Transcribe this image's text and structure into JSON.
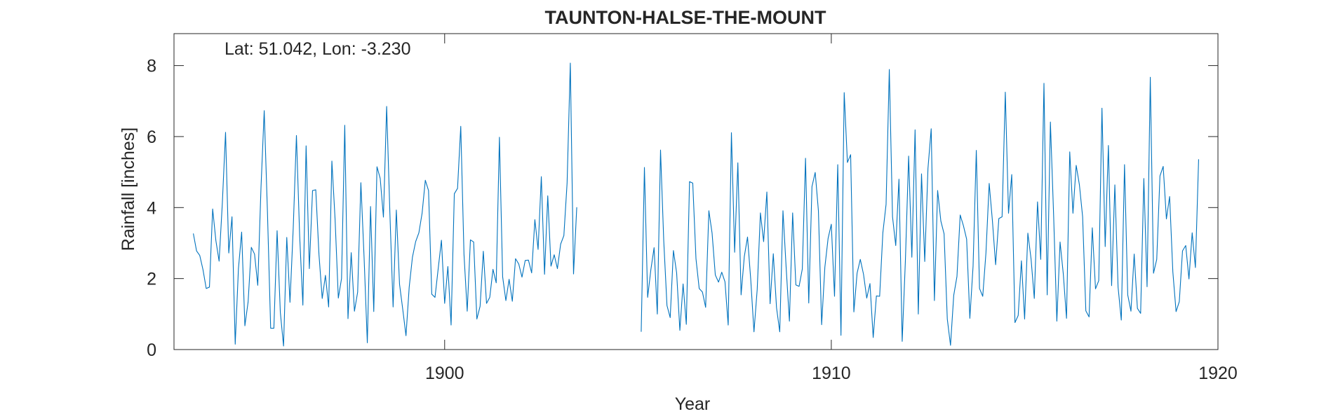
{
  "chart_data": {
    "type": "line",
    "title": "TAUNTON-HALSE-THE-MOUNT",
    "annotation": "Lat: 51.042, Lon: -3.230",
    "xlabel": "Year",
    "ylabel": "Rainfall [inches]",
    "xlim": [
      1893.0,
      1920.0
    ],
    "ylim": [
      0,
      8.9
    ],
    "xticks": [
      1900,
      1910,
      1920
    ],
    "yticks": [
      0,
      2,
      4,
      6,
      8
    ],
    "grid": false,
    "box": true,
    "line_color": "#0072BD",
    "series": [
      {
        "start_year": 1893.5,
        "step_months": 1,
        "segments": [
          {
            "offset_months": 0,
            "values": [
              3.27,
              2.78,
              2.65,
              2.25,
              1.72,
              1.76,
              3.96,
              3.07,
              2.49,
              4.12,
              6.12,
              2.72,
              3.74,
              0.15,
              2.28,
              3.31,
              0.67,
              1.34,
              2.88,
              2.69,
              1.81,
              4.56,
              6.73,
              3.89,
              0.6,
              0.6,
              3.35,
              1.05,
              0.1,
              3.16,
              1.33,
              3.41,
              6.03,
              3.21,
              1.25,
              5.74,
              2.28,
              4.48,
              4.5,
              2.67,
              1.44,
              2.09,
              1.2,
              5.31,
              3.66,
              1.45,
              2.0,
              6.32,
              0.87,
              2.73,
              1.08,
              1.62,
              4.7,
              2.59,
              0.19,
              4.03,
              1.07,
              5.15,
              4.82,
              3.73,
              6.85,
              3.86,
              1.2,
              3.93,
              1.84,
              1.13,
              0.39,
              1.76,
              2.6,
              3.04,
              3.29,
              3.84,
              4.77,
              4.48,
              1.56,
              1.47,
              2.28,
              3.08,
              1.3,
              2.34,
              0.69,
              4.39,
              4.54,
              6.29,
              2.69,
              1.08,
              3.09,
              3.03,
              0.86,
              1.22,
              2.77,
              1.3,
              1.47,
              2.26,
              1.88,
              5.98,
              2.05,
              1.38,
              1.98,
              1.36,
              2.56,
              2.41,
              2.04,
              2.51,
              2.52,
              2.16,
              3.66,
              2.82,
              4.87,
              2.12,
              4.33,
              2.35,
              2.67,
              2.28,
              2.97,
              3.21,
              4.69,
              8.07,
              2.13,
              4.01
            ]
          },
          {
            "offset_months": 139,
            "values": [
              0.5,
              5.13,
              1.47,
              2.25,
              2.87,
              1.0,
              5.62,
              3.06,
              1.24,
              0.9,
              2.79,
              2.16,
              0.54,
              1.85,
              0.71,
              4.73,
              4.69,
              2.56,
              1.72,
              1.62,
              1.19,
              3.91,
              3.28,
              2.1,
              1.9,
              2.18,
              1.91,
              0.69,
              6.11,
              2.74,
              5.26,
              1.54,
              2.62,
              3.17,
              1.97,
              0.5,
              1.69,
              3.85,
              3.04,
              4.44,
              1.29,
              2.7,
              1.18,
              0.5,
              3.91,
              2.29,
              0.8,
              3.85,
              1.82,
              1.78,
              2.27,
              5.39,
              1.31,
              4.59,
              4.99,
              3.91,
              0.7,
              2.32,
              3.13,
              3.53,
              1.5,
              5.21,
              0.4,
              7.24,
              5.27,
              5.49,
              1.06,
              2.15,
              2.54,
              2.12,
              1.45,
              1.86,
              0.34,
              1.51,
              1.5,
              3.29,
              4.09,
              7.89,
              3.74,
              2.93,
              4.8,
              0.23,
              2.52,
              5.45,
              2.6,
              6.19,
              1.0,
              4.95,
              2.48,
              5.1,
              6.22,
              1.38,
              4.48,
              3.62,
              3.26,
              0.86,
              0.12,
              1.53,
              2.06,
              3.79,
              3.49,
              3.11,
              0.88,
              2.35,
              5.61,
              1.72,
              1.5,
              2.73,
              4.68,
              3.63,
              2.39,
              3.69,
              3.74,
              7.25,
              3.84,
              4.93,
              0.76,
              0.96,
              2.5,
              0.86,
              3.28,
              2.55,
              1.44,
              4.16,
              2.54,
              7.5,
              1.54,
              6.41,
              3.78,
              0.8,
              3.03,
              2.13,
              0.88,
              5.57,
              3.84,
              5.19,
              4.64,
              3.74,
              1.09,
              0.92,
              3.43,
              1.71,
              1.94,
              6.8,
              2.9,
              5.75,
              1.8,
              4.64,
              1.76,
              0.83,
              5.21,
              1.54,
              1.08,
              2.69,
              1.16,
              1.02,
              4.82,
              1.77,
              7.67,
              2.15,
              2.54,
              4.89,
              5.16,
              3.68,
              4.31,
              2.19,
              1.07,
              1.35,
              2.78,
              2.93,
              1.99,
              3.29,
              2.31,
              5.36
            ]
          }
        ]
      }
    ]
  }
}
